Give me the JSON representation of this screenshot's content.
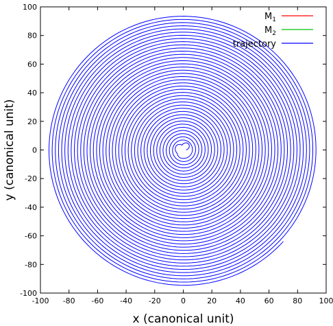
{
  "chart_data": {
    "type": "line",
    "xlabel": "x (canonical unit)",
    "ylabel": "y (canonical unit)",
    "xlim": [
      -100,
      100
    ],
    "ylim": [
      -100,
      100
    ],
    "x_ticks": [
      -100,
      -80,
      -60,
      -40,
      -20,
      0,
      20,
      40,
      60,
      80,
      100
    ],
    "y_ticks": [
      -100,
      -80,
      -60,
      -40,
      -20,
      0,
      20,
      40,
      60,
      80,
      100
    ],
    "x_tick_labels": [
      "-100",
      "-80",
      "-60",
      "-40",
      "-20",
      "0",
      "20",
      "40",
      "60",
      "80",
      "100"
    ],
    "y_tick_labels": [
      "-100",
      "-80",
      "-60",
      "-40",
      "-20",
      "0",
      "20",
      "40",
      "60",
      "80",
      "100"
    ],
    "grid": false,
    "legend_position": "top-right",
    "legend": [
      {
        "base": "M",
        "sub": "1",
        "color": "#ff0000"
      },
      {
        "base": "M",
        "sub": "2",
        "color": "#00c000"
      },
      {
        "base": "trajectory",
        "sub": "",
        "color": "#0000ff"
      }
    ],
    "series": [
      {
        "name": "trajectory",
        "color": "#0000ff",
        "shape": "outward spiral",
        "start_point": [
          0,
          0
        ],
        "outer_radius": 94,
        "end_point": [
          70,
          -64
        ],
        "turns": 40
      }
    ]
  }
}
